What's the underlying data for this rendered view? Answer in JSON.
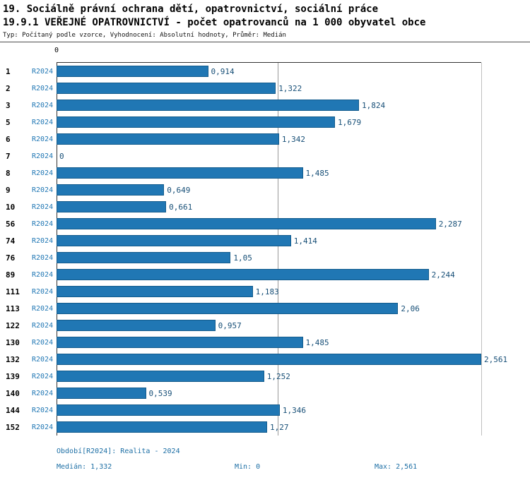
{
  "header": {
    "title_line1": "19. Sociálně právní ochrana dětí, opatrovnictví, sociální práce",
    "title_line2": "19.9.1 VEŘEJNÉ OPATROVNICTVÍ - počet opatrovanců na 1 000 obyvatel obce",
    "subtitle": "Typ: Počítaný podle vzorce, Vyhodnocení: Absolutní hodnoty, Průměr: Medián"
  },
  "chart_data": {
    "type": "bar",
    "orientation": "horizontal",
    "title": "19.9.1 VEŘEJNÉ OPATROVNICTVÍ - počet opatrovanců na 1 000 obyvatel obce",
    "series_label": "R2024",
    "axis_zero_label": "0",
    "xlim": [
      0,
      2.561
    ],
    "median_value": 1.332,
    "grid": "median-line-only",
    "rows": [
      {
        "category": "1",
        "value": 0.914,
        "value_label": "0,914"
      },
      {
        "category": "2",
        "value": 1.322,
        "value_label": "1,322"
      },
      {
        "category": "3",
        "value": 1.824,
        "value_label": "1,824"
      },
      {
        "category": "5",
        "value": 1.679,
        "value_label": "1,679"
      },
      {
        "category": "6",
        "value": 1.342,
        "value_label": "1,342"
      },
      {
        "category": "7",
        "value": 0,
        "value_label": "0"
      },
      {
        "category": "8",
        "value": 1.485,
        "value_label": "1,485"
      },
      {
        "category": "9",
        "value": 0.649,
        "value_label": "0,649"
      },
      {
        "category": "10",
        "value": 0.661,
        "value_label": "0,661"
      },
      {
        "category": "56",
        "value": 2.287,
        "value_label": "2,287"
      },
      {
        "category": "74",
        "value": 1.414,
        "value_label": "1,414"
      },
      {
        "category": "76",
        "value": 1.05,
        "value_label": "1,05"
      },
      {
        "category": "89",
        "value": 2.244,
        "value_label": "2,244"
      },
      {
        "category": "111",
        "value": 1.183,
        "value_label": "1,183"
      },
      {
        "category": "113",
        "value": 2.06,
        "value_label": "2,06"
      },
      {
        "category": "122",
        "value": 0.957,
        "value_label": "0,957"
      },
      {
        "category": "130",
        "value": 1.485,
        "value_label": "1,485"
      },
      {
        "category": "132",
        "value": 2.561,
        "value_label": "2,561"
      },
      {
        "category": "139",
        "value": 1.252,
        "value_label": "1,252"
      },
      {
        "category": "140",
        "value": 0.539,
        "value_label": "0,539"
      },
      {
        "category": "144",
        "value": 1.346,
        "value_label": "1,346"
      },
      {
        "category": "152",
        "value": 1.27,
        "value_label": "1,27"
      }
    ]
  },
  "footer": {
    "period_line": "Období[R2024]: Realita - 2024",
    "median_label": "Medián: 1,332",
    "min_label": "Min: 0",
    "max_label": "Max: 2,561"
  },
  "colors": {
    "bar_fill": "#2077b4",
    "bar_border": "#135c8d",
    "period_text": "#2077b4",
    "value_text": "#174f77",
    "footer_text": "#1d6fa5",
    "median_line": "#999999",
    "axis_line": "#333333"
  }
}
